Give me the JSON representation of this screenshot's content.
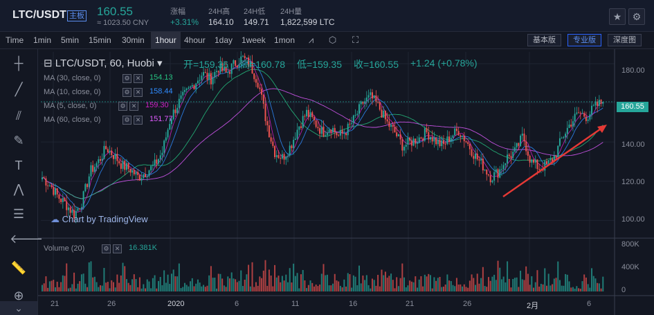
{
  "header": {
    "pair": "LTC/USDT",
    "badge": "主板",
    "price": "160.55",
    "cny": "≈ 1023.50 CNY",
    "stats": [
      {
        "label": "涨幅",
        "value": "+3.31%",
        "color": "#26a69a"
      },
      {
        "label": "24H高",
        "value": "164.10",
        "color": "#d1d4dc"
      },
      {
        "label": "24H低",
        "value": "149.71",
        "color": "#d1d4dc"
      },
      {
        "label": "24H量",
        "value": "1,822,599 LTC",
        "color": "#d1d4dc"
      }
    ],
    "star_icon": "★",
    "settings_icon": "⚙"
  },
  "toolbar": {
    "timeframes": [
      "Time",
      "1min",
      "5min",
      "15min",
      "30min",
      "1hour",
      "4hour",
      "1day",
      "1week",
      "1mon"
    ],
    "active_timeframe": "1hour",
    "views": [
      "基本版",
      "专业版",
      "深度图"
    ],
    "active_view": "专业版"
  },
  "sidebar": {
    "tools": [
      "crosshair-icon",
      "trend-line-icon",
      "fib-icon",
      "brush-icon",
      "text-icon",
      "pattern-icon",
      "measure-icon",
      "back-arrow-icon",
      "ruler-icon",
      "zoom-in-icon",
      "collapse-icon"
    ]
  },
  "chart": {
    "title": "LTC/USDT, 60, Huobi",
    "ohlc": [
      {
        "label": "开=",
        "value": "159.36"
      },
      {
        "label": "高=",
        "value": "160.78"
      },
      {
        "label": "低=",
        "value": "159.35"
      },
      {
        "label": "收=",
        "value": "160.55"
      }
    ],
    "change": "+1.24 (+0.78%)",
    "mas": [
      {
        "label": "MA (30, close, 0)",
        "value": "154.13",
        "color": "#26c281"
      },
      {
        "label": "MA (10, close, 0)",
        "value": "158.44",
        "color": "#2f8cff"
      },
      {
        "label": "MA (5, close, 0)",
        "value": "159.30",
        "color": "#d11fc6"
      },
      {
        "label": "MA (60, close, 0)",
        "value": "151.77",
        "color": "#e05bff"
      }
    ],
    "volume_label": "Volume (20)",
    "volume_value": "16.381K",
    "watermark": "Chart by TradingView",
    "y_ticks": [
      "180.00",
      "160.00",
      "140.00",
      "120.00",
      "100.00"
    ],
    "vol_ticks": [
      "800K",
      "400K",
      "0"
    ],
    "last_price": "160.55",
    "x_ticks": [
      "21",
      "26",
      "2020",
      "6",
      "11",
      "16",
      "21",
      "26",
      "2月",
      "6"
    ]
  },
  "chart_data": {
    "type": "candlestick",
    "ylim": [
      92,
      186
    ],
    "close_series": [
      122,
      118,
      112,
      108,
      103,
      110,
      125,
      130,
      137,
      133,
      128,
      126,
      122,
      125,
      128,
      135,
      152,
      160,
      165,
      170,
      175,
      172,
      178,
      175,
      180,
      183,
      179,
      170,
      150,
      135,
      132,
      138,
      148,
      155,
      150,
      145,
      148,
      143,
      146,
      152,
      160,
      163,
      158,
      150,
      145,
      138,
      140,
      142,
      145,
      141,
      138,
      143,
      146,
      140,
      133,
      128,
      122,
      125,
      132,
      135,
      143,
      130,
      127,
      128,
      133,
      143,
      150,
      155,
      153,
      158,
      160.55
    ],
    "volume_note": "intraday volume bars",
    "colors": {
      "up": "#26a69a",
      "down": "#ef5350",
      "ma30": "#26c281",
      "ma10": "#2f8cff",
      "ma5": "#d11fc6",
      "ma60": "#e05bff",
      "arrow": "#e53935"
    }
  }
}
